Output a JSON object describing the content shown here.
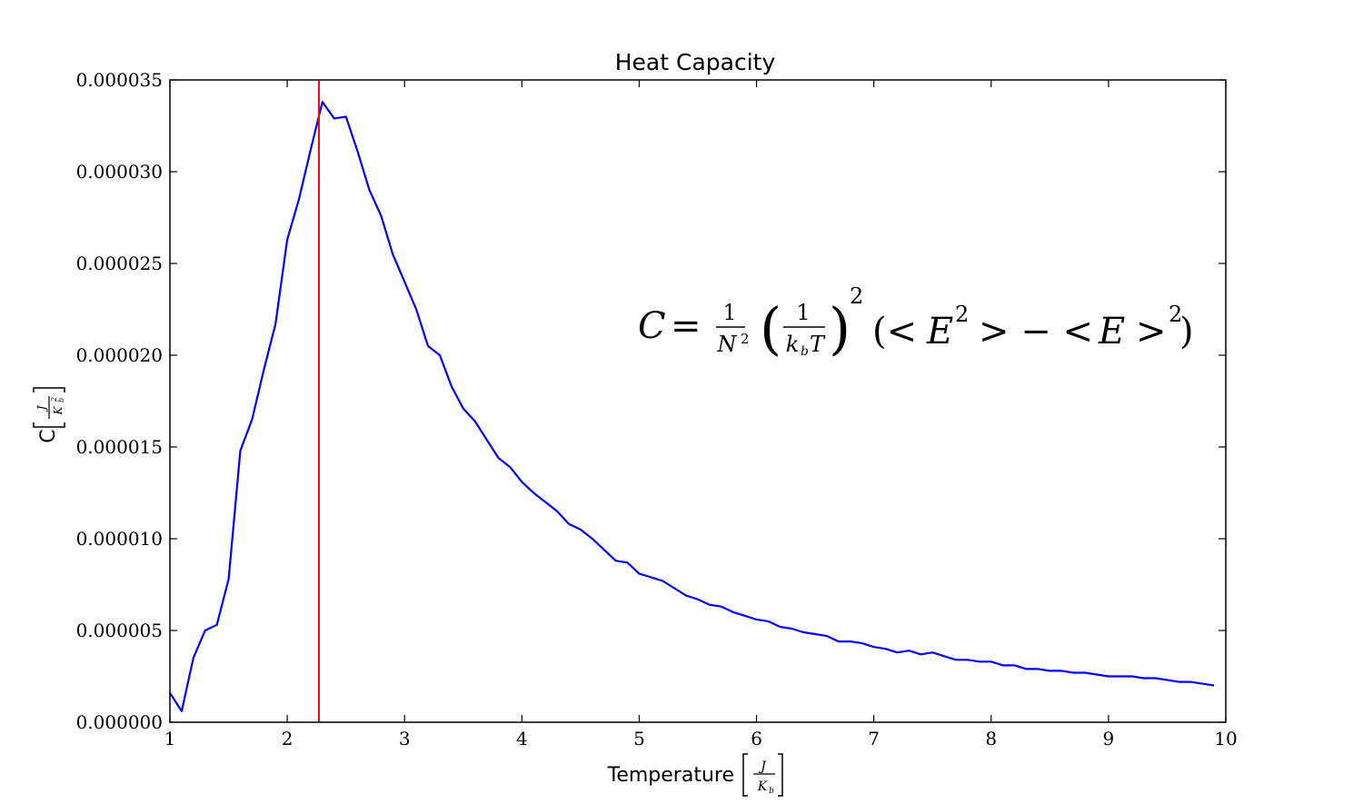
{
  "chart_data": {
    "type": "line",
    "title": "Heat Capacity",
    "xlabel": "Temperature",
    "xlabel_unit": "[J/K_b]",
    "ylabel": "C",
    "ylabel_unit": "[J/K_b^2]",
    "xlim": [
      1,
      10
    ],
    "ylim": [
      0,
      3.5e-05
    ],
    "x_ticks": [
      "1",
      "2",
      "3",
      "4",
      "5",
      "6",
      "7",
      "8",
      "9",
      "10"
    ],
    "y_ticks": [
      "0.000000",
      "0.000005",
      "0.000010",
      "0.000015",
      "0.000020",
      "0.000025",
      "0.000030",
      "0.000035"
    ],
    "grid": false,
    "annotation": "C = 1/N² (1/(k_b T))² (< E² > − < E >²)",
    "vline": {
      "x": 2.27,
      "color": "#ff0000"
    },
    "series": [
      {
        "color": "#0000ff",
        "x": [
          1.0,
          1.1,
          1.2,
          1.3,
          1.4,
          1.5,
          1.6,
          1.7,
          1.8,
          1.9,
          2.0,
          2.1,
          2.2,
          2.3,
          2.4,
          2.5,
          2.6,
          2.7,
          2.8,
          2.9,
          3.0,
          3.1,
          3.2,
          3.3,
          3.4,
          3.5,
          3.6,
          3.7,
          3.8,
          3.9,
          4.0,
          4.1,
          4.2,
          4.3,
          4.4,
          4.5,
          4.6,
          4.7,
          4.8,
          4.9,
          5.0,
          5.1,
          5.2,
          5.3,
          5.4,
          5.5,
          5.6,
          5.7,
          5.8,
          5.9,
          6.0,
          6.1,
          6.2,
          6.3,
          6.4,
          6.5,
          6.6,
          6.7,
          6.8,
          6.9,
          7.0,
          7.1,
          7.2,
          7.3,
          7.4,
          7.5,
          7.6,
          7.7,
          7.8,
          7.9,
          8.0,
          8.1,
          8.2,
          8.3,
          8.4,
          8.5,
          8.6,
          8.7,
          8.8,
          8.9,
          9.0,
          9.1,
          9.2,
          9.3,
          9.4,
          9.5,
          9.6,
          9.7,
          9.8,
          9.9
        ],
        "y": [
          1.6e-06,
          6e-07,
          3.5e-06,
          5e-06,
          5.3e-06,
          7.8e-06,
          1.48e-05,
          1.65e-05,
          1.92e-05,
          2.17e-05,
          2.63e-05,
          2.85e-05,
          3.12e-05,
          3.38e-05,
          3.29e-05,
          3.3e-05,
          3.11e-05,
          2.9e-05,
          2.76e-05,
          2.55e-05,
          2.4e-05,
          2.25e-05,
          2.05e-05,
          2e-05,
          1.83e-05,
          1.71e-05,
          1.64e-05,
          1.54e-05,
          1.44e-05,
          1.39e-05,
          1.31e-05,
          1.25e-05,
          1.2e-05,
          1.15e-05,
          1.08e-05,
          1.05e-05,
          1e-05,
          9.4e-06,
          8.8e-06,
          8.7e-06,
          8.1e-06,
          7.9e-06,
          7.7e-06,
          7.3e-06,
          6.9e-06,
          6.7e-06,
          6.4e-06,
          6.3e-06,
          6e-06,
          5.8e-06,
          5.6e-06,
          5.5e-06,
          5.2e-06,
          5.1e-06,
          4.9e-06,
          4.8e-06,
          4.7e-06,
          4.4e-06,
          4.4e-06,
          4.3e-06,
          4.1e-06,
          4e-06,
          3.8e-06,
          3.9e-06,
          3.7e-06,
          3.8e-06,
          3.6e-06,
          3.4e-06,
          3.4e-06,
          3.3e-06,
          3.3e-06,
          3.1e-06,
          3.1e-06,
          2.9e-06,
          2.9e-06,
          2.8e-06,
          2.8e-06,
          2.7e-06,
          2.7e-06,
          2.6e-06,
          2.5e-06,
          2.5e-06,
          2.5e-06,
          2.4e-06,
          2.4e-06,
          2.3e-06,
          2.2e-06,
          2.2e-06,
          2.1e-06,
          2e-06
        ]
      }
    ]
  }
}
